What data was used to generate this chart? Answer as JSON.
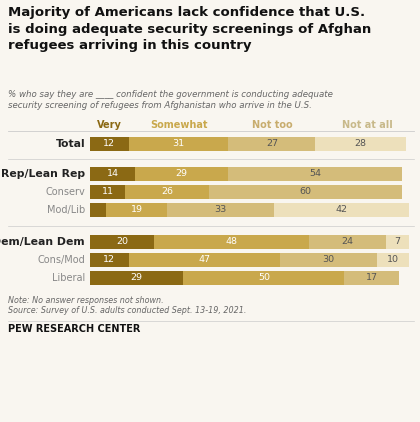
{
  "title": "Majority of Americans lack confidence that U.S.\nis doing adequate security screenings of Afghan\nrefugees arriving in this country",
  "subtitle": "% who say they are ____ confident the government is conducting adequate\nsecurity screening of refugees from Afghanistan who arrive in the U.S.",
  "categories": [
    "Very",
    "Somewhat",
    "Not too",
    "Not at all"
  ],
  "colors": [
    "#8B6914",
    "#C9A84C",
    "#D4BC7A",
    "#EDE0BB"
  ],
  "header_colors": [
    "#8B6914",
    "#C9A84C",
    "#C8AD6E",
    "#C8B98A"
  ],
  "rows": [
    {
      "label": "Total",
      "bold": true,
      "indent": false,
      "values": [
        12,
        31,
        27,
        28
      ]
    },
    {
      "label": "Rep/Lean Rep",
      "bold": true,
      "indent": false,
      "values": [
        14,
        29,
        54,
        0
      ]
    },
    {
      "label": "Conserv",
      "bold": false,
      "indent": true,
      "values": [
        11,
        26,
        60,
        0
      ]
    },
    {
      "label": "Mod/Lib",
      "bold": false,
      "indent": true,
      "values": [
        5,
        19,
        33,
        42
      ]
    },
    {
      "label": "Dem/Lean Dem",
      "bold": true,
      "indent": false,
      "values": [
        20,
        48,
        24,
        7
      ]
    },
    {
      "label": "Cons/Mod",
      "bold": false,
      "indent": true,
      "values": [
        12,
        47,
        30,
        10
      ]
    },
    {
      "label": "Liberal",
      "bold": false,
      "indent": true,
      "values": [
        29,
        50,
        17,
        0
      ]
    }
  ],
  "note": "Note: No answer responses not shown.",
  "source": "Source: Survey of U.S. adults conducted Sept. 13-19, 2021.",
  "footer": "PEW RESEARCH CENTER",
  "bg_color": "#f9f6f0"
}
